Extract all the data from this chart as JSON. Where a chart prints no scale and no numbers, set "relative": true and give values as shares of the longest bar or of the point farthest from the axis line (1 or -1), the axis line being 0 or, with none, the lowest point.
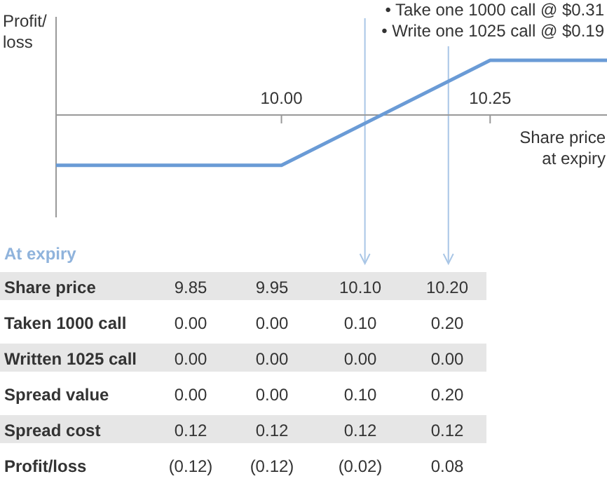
{
  "chart_data": [
    {
      "type": "line",
      "relative": true,
      "ylabel": "Profit/\nloss",
      "xlabel": "Share price\nat expiry",
      "x": [
        9.73,
        10.0,
        10.25,
        10.39
      ],
      "xlim": [
        9.73,
        10.39
      ],
      "xticks": [
        {
          "value": 10.0,
          "label": "10.00"
        },
        {
          "value": 10.25,
          "label": "10.25"
        }
      ],
      "series": [
        {
          "color": "#6a9bd6",
          "values": [
            -0.92,
            -0.92,
            1,
            1
          ]
        }
      ],
      "ref_lines": [
        {
          "axis": "x",
          "value": 10.1,
          "color": "#a9c6e6"
        },
        {
          "axis": "x",
          "value": 10.2,
          "color": "#a9c6e6"
        }
      ],
      "annotations": [
        "• Take one 1000 call @ $0.31",
        "• Write one 1025 call @ $0.19"
      ]
    },
    {
      "type": "other",
      "title": "At expiry",
      "y_categories": [
        "Share price",
        "Taken 1000 call",
        "Written 1025 call",
        "Spread value",
        "Spread cost",
        "Profit/loss"
      ],
      "cell_labels": [
        [
          "9.85",
          "9.95",
          "10.10",
          "10.20"
        ],
        [
          "0.00",
          "0.00",
          "0.10",
          "0.20"
        ],
        [
          "0.00",
          "0.00",
          "0.00",
          "0.00"
        ],
        [
          "0.00",
          "0.00",
          "0.10",
          "0.20"
        ],
        [
          "0.12",
          "0.12",
          "0.12",
          "0.12"
        ],
        [
          "(0.12)",
          "(0.12)",
          "(0.02)",
          "0.08"
        ]
      ]
    }
  ]
}
